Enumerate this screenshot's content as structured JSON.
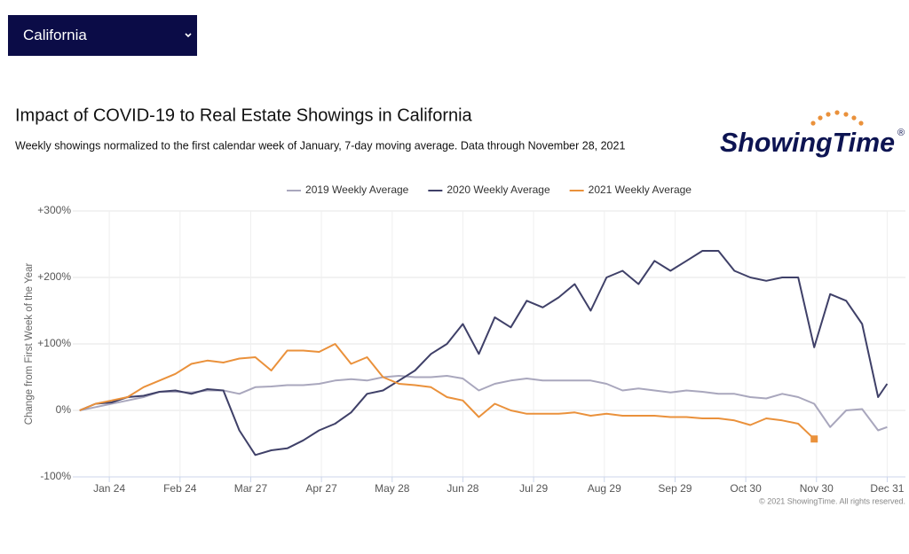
{
  "dropdown": {
    "selected": "California"
  },
  "logo": {
    "text": "ShowingTime",
    "mark": "®"
  },
  "chart_data": {
    "type": "line",
    "title": "Impact of COVID-19 to Real Estate Showings in California",
    "subtitle": "Weekly showings normalized to the first calendar week of January, 7-day moving average. Data through November 28, 2021",
    "y_label": "Change from First Week of the Year",
    "credit": "© 2021 ShowingTime. All rights reserved.",
    "xlim": [
      8,
      373
    ],
    "xticks": [
      {
        "value": 24,
        "label": "Jan 24"
      },
      {
        "value": 55,
        "label": "Feb 24"
      },
      {
        "value": 86,
        "label": "Mar 27"
      },
      {
        "value": 117,
        "label": "Apr 27"
      },
      {
        "value": 148,
        "label": "May 28"
      },
      {
        "value": 179,
        "label": "Jun 28"
      },
      {
        "value": 210,
        "label": "Jul 29"
      },
      {
        "value": 241,
        "label": "Aug 29"
      },
      {
        "value": 272,
        "label": "Sep 29"
      },
      {
        "value": 303,
        "label": "Oct 30"
      },
      {
        "value": 334,
        "label": "Nov 30"
      },
      {
        "value": 365,
        "label": "Dec 31"
      }
    ],
    "ylim": [
      -100,
      300
    ],
    "yticks": [
      {
        "value": -100,
        "label": "-100%"
      },
      {
        "value": 0,
        "label": "0%"
      },
      {
        "value": 100,
        "label": "+100%"
      },
      {
        "value": 200,
        "label": "+200%"
      },
      {
        "value": 300,
        "label": "+300%"
      }
    ],
    "grid": true,
    "legend": "top",
    "x": [
      11,
      18,
      25,
      32,
      39,
      46,
      53,
      60,
      67,
      74,
      81,
      88,
      95,
      102,
      109,
      116,
      123,
      130,
      137,
      144,
      151,
      158,
      165,
      172,
      179,
      186,
      193,
      200,
      207,
      214,
      221,
      228,
      235,
      242,
      249,
      256,
      263,
      270,
      277,
      284,
      291,
      298,
      305,
      312,
      319,
      326,
      333,
      340,
      347,
      354,
      361,
      365
    ],
    "series": [
      {
        "name": "2019 Weekly Average",
        "color": "#a9a7bd",
        "values": [
          0,
          5,
          10,
          15,
          20,
          28,
          28,
          27,
          30,
          30,
          25,
          35,
          36,
          38,
          38,
          40,
          45,
          47,
          45,
          50,
          52,
          50,
          50,
          52,
          48,
          30,
          40,
          45,
          48,
          45,
          45,
          45,
          45,
          40,
          30,
          33,
          30,
          27,
          30,
          28,
          25,
          25,
          20,
          18,
          25,
          20,
          10,
          -25,
          0,
          2,
          -30,
          -25
        ]
      },
      {
        "name": "2020 Weekly Average",
        "color": "#3f4068",
        "values": [
          0,
          10,
          12,
          20,
          22,
          28,
          30,
          25,
          32,
          30,
          -30,
          -67,
          -60,
          -57,
          -45,
          -30,
          -20,
          -3,
          25,
          30,
          45,
          60,
          85,
          100,
          130,
          85,
          140,
          125,
          165,
          155,
          170,
          190,
          150,
          200,
          210,
          190,
          225,
          210,
          225,
          240,
          240,
          210,
          200,
          195,
          200,
          200,
          95,
          175,
          165,
          130,
          20,
          40
        ]
      },
      {
        "name": "2021 Weekly Average",
        "color": "#ea913b",
        "marker_last": true,
        "values": [
          0,
          10,
          15,
          20,
          35,
          45,
          55,
          70,
          75,
          72,
          78,
          80,
          60,
          90,
          90,
          88,
          100,
          70,
          80,
          50,
          40,
          38,
          35,
          20,
          15,
          -10,
          10,
          0,
          -5,
          -5,
          -5,
          -3,
          -8,
          -5,
          -8,
          -8,
          -8,
          -10,
          -10,
          -12,
          -12,
          -15,
          -22,
          -12,
          -15,
          -20,
          -43,
          null,
          null,
          null,
          null,
          null
        ]
      }
    ]
  }
}
